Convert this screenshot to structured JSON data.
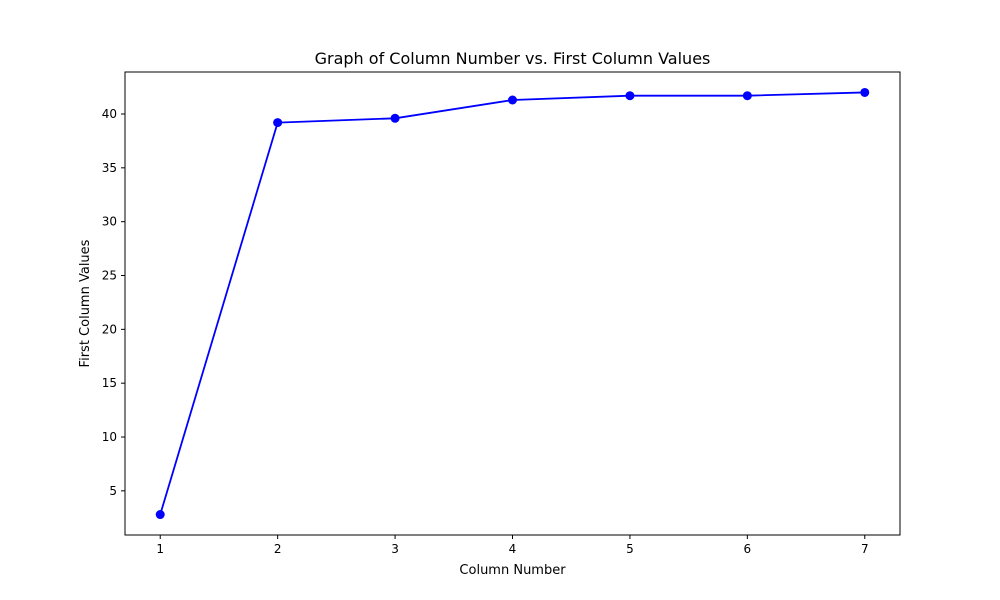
{
  "chart_data": {
    "type": "line",
    "title": "Graph of Column Number vs. First Column Values",
    "xlabel": "Column Number",
    "ylabel": "First Column Values",
    "x": [
      1,
      2,
      3,
      4,
      5,
      6,
      7
    ],
    "series": [
      {
        "values": [
          2.8,
          39.2,
          39.6,
          41.3,
          41.7,
          41.7,
          42.0
        ],
        "color": "#0000ff",
        "marker": "circle"
      }
    ],
    "xticks": [
      1,
      2,
      3,
      4,
      5,
      6,
      7
    ],
    "yticks": [
      5,
      10,
      15,
      20,
      25,
      30,
      35,
      40
    ],
    "xlim": [
      0.7,
      7.3
    ],
    "ylim": [
      0.9,
      43.9
    ],
    "grid": false,
    "legend": "none"
  }
}
